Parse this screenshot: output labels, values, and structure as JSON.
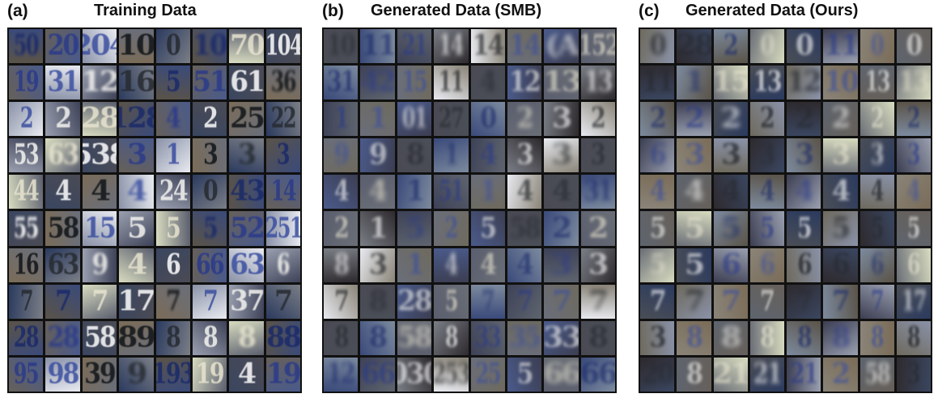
{
  "panels": [
    {
      "label": "(a)",
      "title": "Training Data"
    },
    {
      "label": "(b)",
      "title": "Generated Data (SMB)"
    },
    {
      "label": "(c)",
      "title": "Generated Data (Ours)"
    }
  ],
  "colors": {
    "grid_border": "#111111",
    "tile_palette": [
      "#3b4654",
      "#8c8a86",
      "#c9c8c0",
      "#1f2a52",
      "#6c6459",
      "#e6e6dc",
      "#4b4032",
      "#b6b9a1"
    ]
  }
}
